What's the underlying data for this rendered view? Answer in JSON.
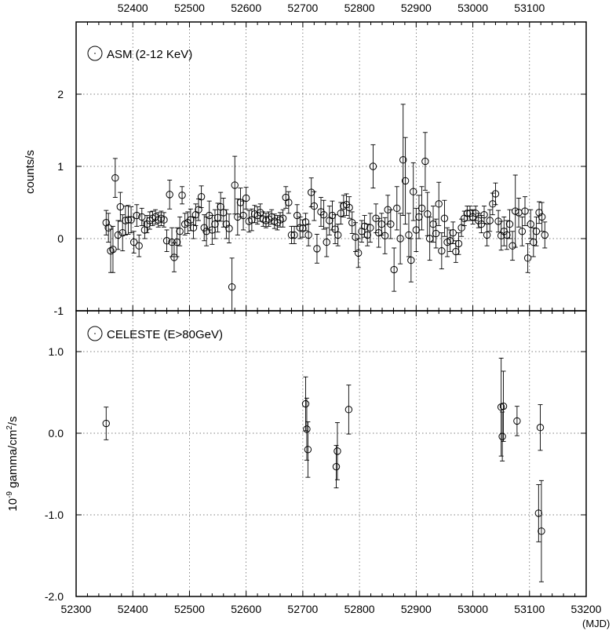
{
  "chart_data": [
    {
      "type": "scatter",
      "panel": "top",
      "legend": "ASM (2-12 KeV)",
      "ylabel": "counts/s",
      "xlabel": "(MJD)",
      "xlim": [
        52300,
        53200
      ],
      "ylim": [
        -1,
        3
      ],
      "x_ticks": [
        52400,
        52500,
        52600,
        52700,
        52800,
        52900,
        53000,
        53100
      ],
      "y_ticks": [
        -1,
        0,
        1,
        2
      ],
      "y_tick_labels": [
        "-1",
        "0",
        "1",
        "2"
      ],
      "grid": true,
      "series": [
        {
          "style": "open-circle-with-errorbars",
          "points": [
            {
              "x": 52353,
              "y": 0.22,
              "err": 0.17
            },
            {
              "x": 52357,
              "y": 0.15,
              "err": 0.2
            },
            {
              "x": 52361,
              "y": -0.17,
              "err": 0.3
            },
            {
              "x": 52365,
              "y": -0.15,
              "err": 0.32
            },
            {
              "x": 52369,
              "y": 0.84,
              "err": 0.27
            },
            {
              "x": 52374,
              "y": 0.05,
              "err": 0.2
            },
            {
              "x": 52378,
              "y": 0.44,
              "err": 0.2
            },
            {
              "x": 52382,
              "y": 0.08,
              "err": 0.25
            },
            {
              "x": 52387,
              "y": 0.25,
              "err": 0.2
            },
            {
              "x": 52392,
              "y": 0.26,
              "err": 0.2
            },
            {
              "x": 52397,
              "y": 0.26,
              "err": 0.18
            },
            {
              "x": 52402,
              "y": -0.05,
              "err": 0.15
            },
            {
              "x": 52407,
              "y": 0.32,
              "err": 0.15
            },
            {
              "x": 52411,
              "y": -0.1,
              "err": 0.15
            },
            {
              "x": 52416,
              "y": 0.3,
              "err": 0.12
            },
            {
              "x": 52421,
              "y": 0.12,
              "err": 0.12
            },
            {
              "x": 52425,
              "y": 0.2,
              "err": 0.12
            },
            {
              "x": 52430,
              "y": 0.25,
              "err": 0.12
            },
            {
              "x": 52435,
              "y": 0.28,
              "err": 0.1
            },
            {
              "x": 52440,
              "y": 0.3,
              "err": 0.1
            },
            {
              "x": 52445,
              "y": 0.26,
              "err": 0.1
            },
            {
              "x": 52450,
              "y": 0.28,
              "err": 0.1
            },
            {
              "x": 52455,
              "y": 0.26,
              "err": 0.1
            },
            {
              "x": 52460,
              "y": -0.03,
              "err": 0.15
            },
            {
              "x": 52465,
              "y": 0.61,
              "err": 0.2
            },
            {
              "x": 52469,
              "y": -0.05,
              "err": 0.2
            },
            {
              "x": 52473,
              "y": -0.26,
              "err": 0.2
            },
            {
              "x": 52478,
              "y": -0.05,
              "err": 0.2
            },
            {
              "x": 52483,
              "y": 0.1,
              "err": 0.2
            },
            {
              "x": 52487,
              "y": 0.6,
              "err": 0.12
            },
            {
              "x": 52492,
              "y": 0.2,
              "err": 0.15
            },
            {
              "x": 52497,
              "y": 0.22,
              "err": 0.15
            },
            {
              "x": 52502,
              "y": 0.26,
              "err": 0.15
            },
            {
              "x": 52507,
              "y": 0.15,
              "err": 0.15
            },
            {
              "x": 52511,
              "y": 0.33,
              "err": 0.15
            },
            {
              "x": 52516,
              "y": 0.4,
              "err": 0.15
            },
            {
              "x": 52521,
              "y": 0.58,
              "err": 0.15
            },
            {
              "x": 52526,
              "y": 0.15,
              "err": 0.18
            },
            {
              "x": 52530,
              "y": 0.1,
              "err": 0.2
            },
            {
              "x": 52535,
              "y": 0.32,
              "err": 0.2
            },
            {
              "x": 52540,
              "y": 0.12,
              "err": 0.2
            },
            {
              "x": 52545,
              "y": 0.2,
              "err": 0.2
            },
            {
              "x": 52550,
              "y": 0.29,
              "err": 0.2
            },
            {
              "x": 52555,
              "y": 0.44,
              "err": 0.2
            },
            {
              "x": 52560,
              "y": 0.36,
              "err": 0.2
            },
            {
              "x": 52565,
              "y": 0.2,
              "err": 0.2
            },
            {
              "x": 52570,
              "y": 0.14,
              "err": 0.2
            },
            {
              "x": 52575,
              "y": -0.67,
              "err": 0.4
            },
            {
              "x": 52580,
              "y": 0.74,
              "err": 0.4
            },
            {
              "x": 52585,
              "y": 0.3,
              "err": 0.25
            },
            {
              "x": 52590,
              "y": 0.5,
              "err": 0.2
            },
            {
              "x": 52595,
              "y": 0.32,
              "err": 0.2
            },
            {
              "x": 52600,
              "y": 0.56,
              "err": 0.15
            },
            {
              "x": 52605,
              "y": 0.24,
              "err": 0.15
            },
            {
              "x": 52610,
              "y": 0.26,
              "err": 0.15
            },
            {
              "x": 52615,
              "y": 0.34,
              "err": 0.12
            },
            {
              "x": 52620,
              "y": 0.32,
              "err": 0.12
            },
            {
              "x": 52625,
              "y": 0.36,
              "err": 0.12
            },
            {
              "x": 52630,
              "y": 0.27,
              "err": 0.1
            },
            {
              "x": 52635,
              "y": 0.25,
              "err": 0.1
            },
            {
              "x": 52640,
              "y": 0.27,
              "err": 0.1
            },
            {
              "x": 52645,
              "y": 0.3,
              "err": 0.1
            },
            {
              "x": 52650,
              "y": 0.24,
              "err": 0.1
            },
            {
              "x": 52655,
              "y": 0.22,
              "err": 0.1
            },
            {
              "x": 52660,
              "y": 0.26,
              "err": 0.1
            },
            {
              "x": 52665,
              "y": 0.28,
              "err": 0.12
            },
            {
              "x": 52670,
              "y": 0.57,
              "err": 0.15
            },
            {
              "x": 52675,
              "y": 0.5,
              "err": 0.15
            },
            {
              "x": 52680,
              "y": 0.05,
              "err": 0.12
            },
            {
              "x": 52685,
              "y": 0.05,
              "err": 0.12
            },
            {
              "x": 52690,
              "y": 0.32,
              "err": 0.15
            },
            {
              "x": 52695,
              "y": 0.15,
              "err": 0.15
            },
            {
              "x": 52700,
              "y": 0.14,
              "err": 0.12
            },
            {
              "x": 52705,
              "y": 0.23,
              "err": 0.12
            },
            {
              "x": 52710,
              "y": 0.05,
              "err": 0.15
            },
            {
              "x": 52715,
              "y": 0.64,
              "err": 0.2
            },
            {
              "x": 52720,
              "y": 0.45,
              "err": 0.2
            },
            {
              "x": 52725,
              "y": -0.14,
              "err": 0.2
            },
            {
              "x": 52732,
              "y": 0.37,
              "err": 0.2
            },
            {
              "x": 52737,
              "y": 0.33,
              "err": 0.2
            },
            {
              "x": 52742,
              "y": -0.05,
              "err": 0.2
            },
            {
              "x": 52747,
              "y": 0.25,
              "err": 0.2
            },
            {
              "x": 52752,
              "y": 0.32,
              "err": 0.2
            },
            {
              "x": 52757,
              "y": 0.13,
              "err": 0.2
            },
            {
              "x": 52762,
              "y": 0.05,
              "err": 0.15
            },
            {
              "x": 52767,
              "y": 0.35,
              "err": 0.15
            },
            {
              "x": 52772,
              "y": 0.45,
              "err": 0.15
            },
            {
              "x": 52777,
              "y": 0.47,
              "err": 0.15
            },
            {
              "x": 52782,
              "y": 0.43,
              "err": 0.15
            },
            {
              "x": 52787,
              "y": 0.22,
              "err": 0.15
            },
            {
              "x": 52793,
              "y": 0.02,
              "err": 0.2
            },
            {
              "x": 52798,
              "y": -0.2,
              "err": 0.2
            },
            {
              "x": 52804,
              "y": 0.1,
              "err": 0.15
            },
            {
              "x": 52809,
              "y": 0.17,
              "err": 0.15
            },
            {
              "x": 52814,
              "y": 0.05,
              "err": 0.15
            },
            {
              "x": 52819,
              "y": 0.15,
              "err": 0.2
            },
            {
              "x": 52824,
              "y": 1.0,
              "err": 0.3
            },
            {
              "x": 52829,
              "y": 0.28,
              "err": 0.2
            },
            {
              "x": 52834,
              "y": 0.08,
              "err": 0.2
            },
            {
              "x": 52839,
              "y": 0.2,
              "err": 0.15
            },
            {
              "x": 52845,
              "y": 0.04,
              "err": 0.25
            },
            {
              "x": 52850,
              "y": 0.4,
              "err": 0.2
            },
            {
              "x": 52855,
              "y": 0.2,
              "err": 0.2
            },
            {
              "x": 52861,
              "y": -0.43,
              "err": 0.3
            },
            {
              "x": 52866,
              "y": 0.42,
              "err": 0.3
            },
            {
              "x": 52872,
              "y": 0.0,
              "err": 0.35
            },
            {
              "x": 52877,
              "y": 1.09,
              "err": 0.77
            },
            {
              "x": 52881,
              "y": 0.8,
              "err": 0.6
            },
            {
              "x": 52887,
              "y": 0.05,
              "err": 0.3
            },
            {
              "x": 52891,
              "y": -0.3,
              "err": 0.3
            },
            {
              "x": 52895,
              "y": 0.65,
              "err": 0.4
            },
            {
              "x": 52900,
              "y": 0.12,
              "err": 0.3
            },
            {
              "x": 52905,
              "y": 0.3,
              "err": 0.3
            },
            {
              "x": 52910,
              "y": 0.42,
              "err": 0.3
            },
            {
              "x": 52916,
              "y": 1.07,
              "err": 0.4
            },
            {
              "x": 52920,
              "y": 0.34,
              "err": 0.3
            },
            {
              "x": 52924,
              "y": 0.0,
              "err": 0.3
            },
            {
              "x": 52930,
              "y": 0.2,
              "err": 0.25
            },
            {
              "x": 52935,
              "y": 0.07,
              "err": 0.2
            },
            {
              "x": 52940,
              "y": 0.48,
              "err": 0.3
            },
            {
              "x": 52945,
              "y": -0.17,
              "err": 0.25
            },
            {
              "x": 52950,
              "y": 0.28,
              "err": 0.25
            },
            {
              "x": 52955,
              "y": -0.05,
              "err": 0.2
            },
            {
              "x": 52960,
              "y": -0.03,
              "err": 0.15
            },
            {
              "x": 52965,
              "y": 0.08,
              "err": 0.15
            },
            {
              "x": 52970,
              "y": -0.18,
              "err": 0.15
            },
            {
              "x": 52975,
              "y": -0.07,
              "err": 0.15
            },
            {
              "x": 52980,
              "y": 0.15,
              "err": 0.12
            },
            {
              "x": 52985,
              "y": 0.28,
              "err": 0.1
            },
            {
              "x": 52990,
              "y": 0.35,
              "err": 0.1
            },
            {
              "x": 52995,
              "y": 0.35,
              "err": 0.1
            },
            {
              "x": 53000,
              "y": 0.3,
              "err": 0.1
            },
            {
              "x": 53005,
              "y": 0.35,
              "err": 0.1
            },
            {
              "x": 53010,
              "y": 0.25,
              "err": 0.1
            },
            {
              "x": 53015,
              "y": 0.2,
              "err": 0.12
            },
            {
              "x": 53020,
              "y": 0.33,
              "err": 0.12
            },
            {
              "x": 53025,
              "y": 0.05,
              "err": 0.15
            },
            {
              "x": 53030,
              "y": 0.25,
              "err": 0.15
            },
            {
              "x": 53035,
              "y": 0.48,
              "err": 0.15
            },
            {
              "x": 53040,
              "y": 0.62,
              "err": 0.15
            },
            {
              "x": 53045,
              "y": 0.24,
              "err": 0.15
            },
            {
              "x": 53050,
              "y": 0.04,
              "err": 0.2
            },
            {
              "x": 53055,
              "y": 0.1,
              "err": 0.2
            },
            {
              "x": 53060,
              "y": 0.05,
              "err": 0.2
            },
            {
              "x": 53065,
              "y": 0.2,
              "err": 0.2
            },
            {
              "x": 53070,
              "y": -0.1,
              "err": 0.2
            },
            {
              "x": 53075,
              "y": 0.38,
              "err": 0.5
            },
            {
              "x": 53081,
              "y": 0.36,
              "err": 0.2
            },
            {
              "x": 53087,
              "y": 0.1,
              "err": 0.2
            },
            {
              "x": 53092,
              "y": 0.38,
              "err": 0.2
            },
            {
              "x": 53097,
              "y": -0.27,
              "err": 0.2
            },
            {
              "x": 53102,
              "y": 0.2,
              "err": 0.2
            },
            {
              "x": 53107,
              "y": -0.05,
              "err": 0.2
            },
            {
              "x": 53112,
              "y": 0.1,
              "err": 0.2
            },
            {
              "x": 53117,
              "y": 0.36,
              "err": 0.15
            },
            {
              "x": 53122,
              "y": 0.3,
              "err": 0.2
            },
            {
              "x": 53127,
              "y": 0.05,
              "err": 0.18
            }
          ]
        }
      ]
    },
    {
      "type": "scatter",
      "panel": "bottom",
      "legend": "CELESTE (E>80GeV)",
      "ylabel_base": "10",
      "ylabel_exp": "-9",
      "ylabel_mid": " gamma/cm",
      "ylabel_sq": "2",
      "ylabel_end": "/s",
      "xlabel": "(MJD)",
      "xlim": [
        52300,
        53200
      ],
      "ylim": [
        -2.0,
        1.5
      ],
      "x_ticks": [
        52300,
        52400,
        52500,
        52600,
        52700,
        52800,
        52900,
        53000,
        53100,
        53200
      ],
      "x_tick_labels": [
        "52300",
        "52400",
        "52500",
        "52600",
        "52700",
        "52800",
        "52900",
        "53000",
        "53100",
        "53200"
      ],
      "y_ticks": [
        -2.0,
        -1.0,
        0.0,
        1.0
      ],
      "y_tick_labels": [
        "-2.0",
        "-1.0",
        "0.0",
        "1.0"
      ],
      "grid": true,
      "series": [
        {
          "style": "open-circle-with-errorbars",
          "points": [
            {
              "x": 52353,
              "y": 0.12,
              "err": 0.2
            },
            {
              "x": 52705,
              "y": 0.36,
              "err": 0.33
            },
            {
              "x": 52707,
              "y": 0.05,
              "err": 0.38
            },
            {
              "x": 52709,
              "y": -0.2,
              "err": 0.34
            },
            {
              "x": 52759,
              "y": -0.41,
              "err": 0.26
            },
            {
              "x": 52761,
              "y": -0.22,
              "err": 0.35
            },
            {
              "x": 52781,
              "y": 0.29,
              "err": 0.3
            },
            {
              "x": 53050,
              "y": 0.32,
              "err": 0.6
            },
            {
              "x": 53052,
              "y": -0.04,
              "err": 0.3
            },
            {
              "x": 53054,
              "y": 0.33,
              "err": 0.43
            },
            {
              "x": 53078,
              "y": 0.15,
              "err": 0.18
            },
            {
              "x": 53116,
              "y": -0.98,
              "err": 0.35
            },
            {
              "x": 53119,
              "y": 0.07,
              "err": 0.28
            },
            {
              "x": 53121,
              "y": -1.2,
              "err": 0.62
            }
          ]
        }
      ]
    }
  ]
}
